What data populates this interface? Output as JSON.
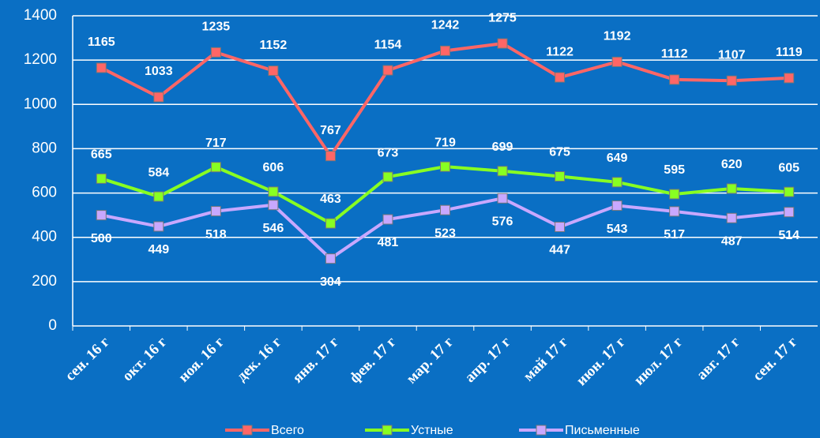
{
  "chart_data": {
    "type": "line",
    "categories": [
      "сен. 16 г",
      "окт. 16 г",
      "ноя. 16 г",
      "дек. 16 г",
      "янв. 17 г",
      "фев. 17 г",
      "мар. 17 г",
      "апр. 17 г",
      "май 17 г",
      "июн. 17 г",
      "июл. 17 г",
      "авг. 17 г",
      "сен. 17 г"
    ],
    "series": [
      {
        "name": "Всего",
        "color": "#ff6666",
        "values": [
          1165,
          1033,
          1235,
          1152,
          767,
          1154,
          1242,
          1275,
          1122,
          1192,
          1112,
          1107,
          1119
        ]
      },
      {
        "name": "Устные",
        "color": "#88ff22",
        "values": [
          665,
          584,
          717,
          606,
          463,
          673,
          719,
          699,
          675,
          649,
          595,
          620,
          605
        ]
      },
      {
        "name": "Письменные",
        "color": "#c8a8ff",
        "values": [
          500,
          449,
          518,
          546,
          304,
          481,
          523,
          576,
          447,
          543,
          517,
          487,
          514
        ]
      }
    ],
    "ylim": [
      0,
      1400
    ],
    "yticks": [
      0,
      200,
      400,
      600,
      800,
      1000,
      1200,
      1400
    ],
    "grid": true,
    "legend": "bottom"
  }
}
